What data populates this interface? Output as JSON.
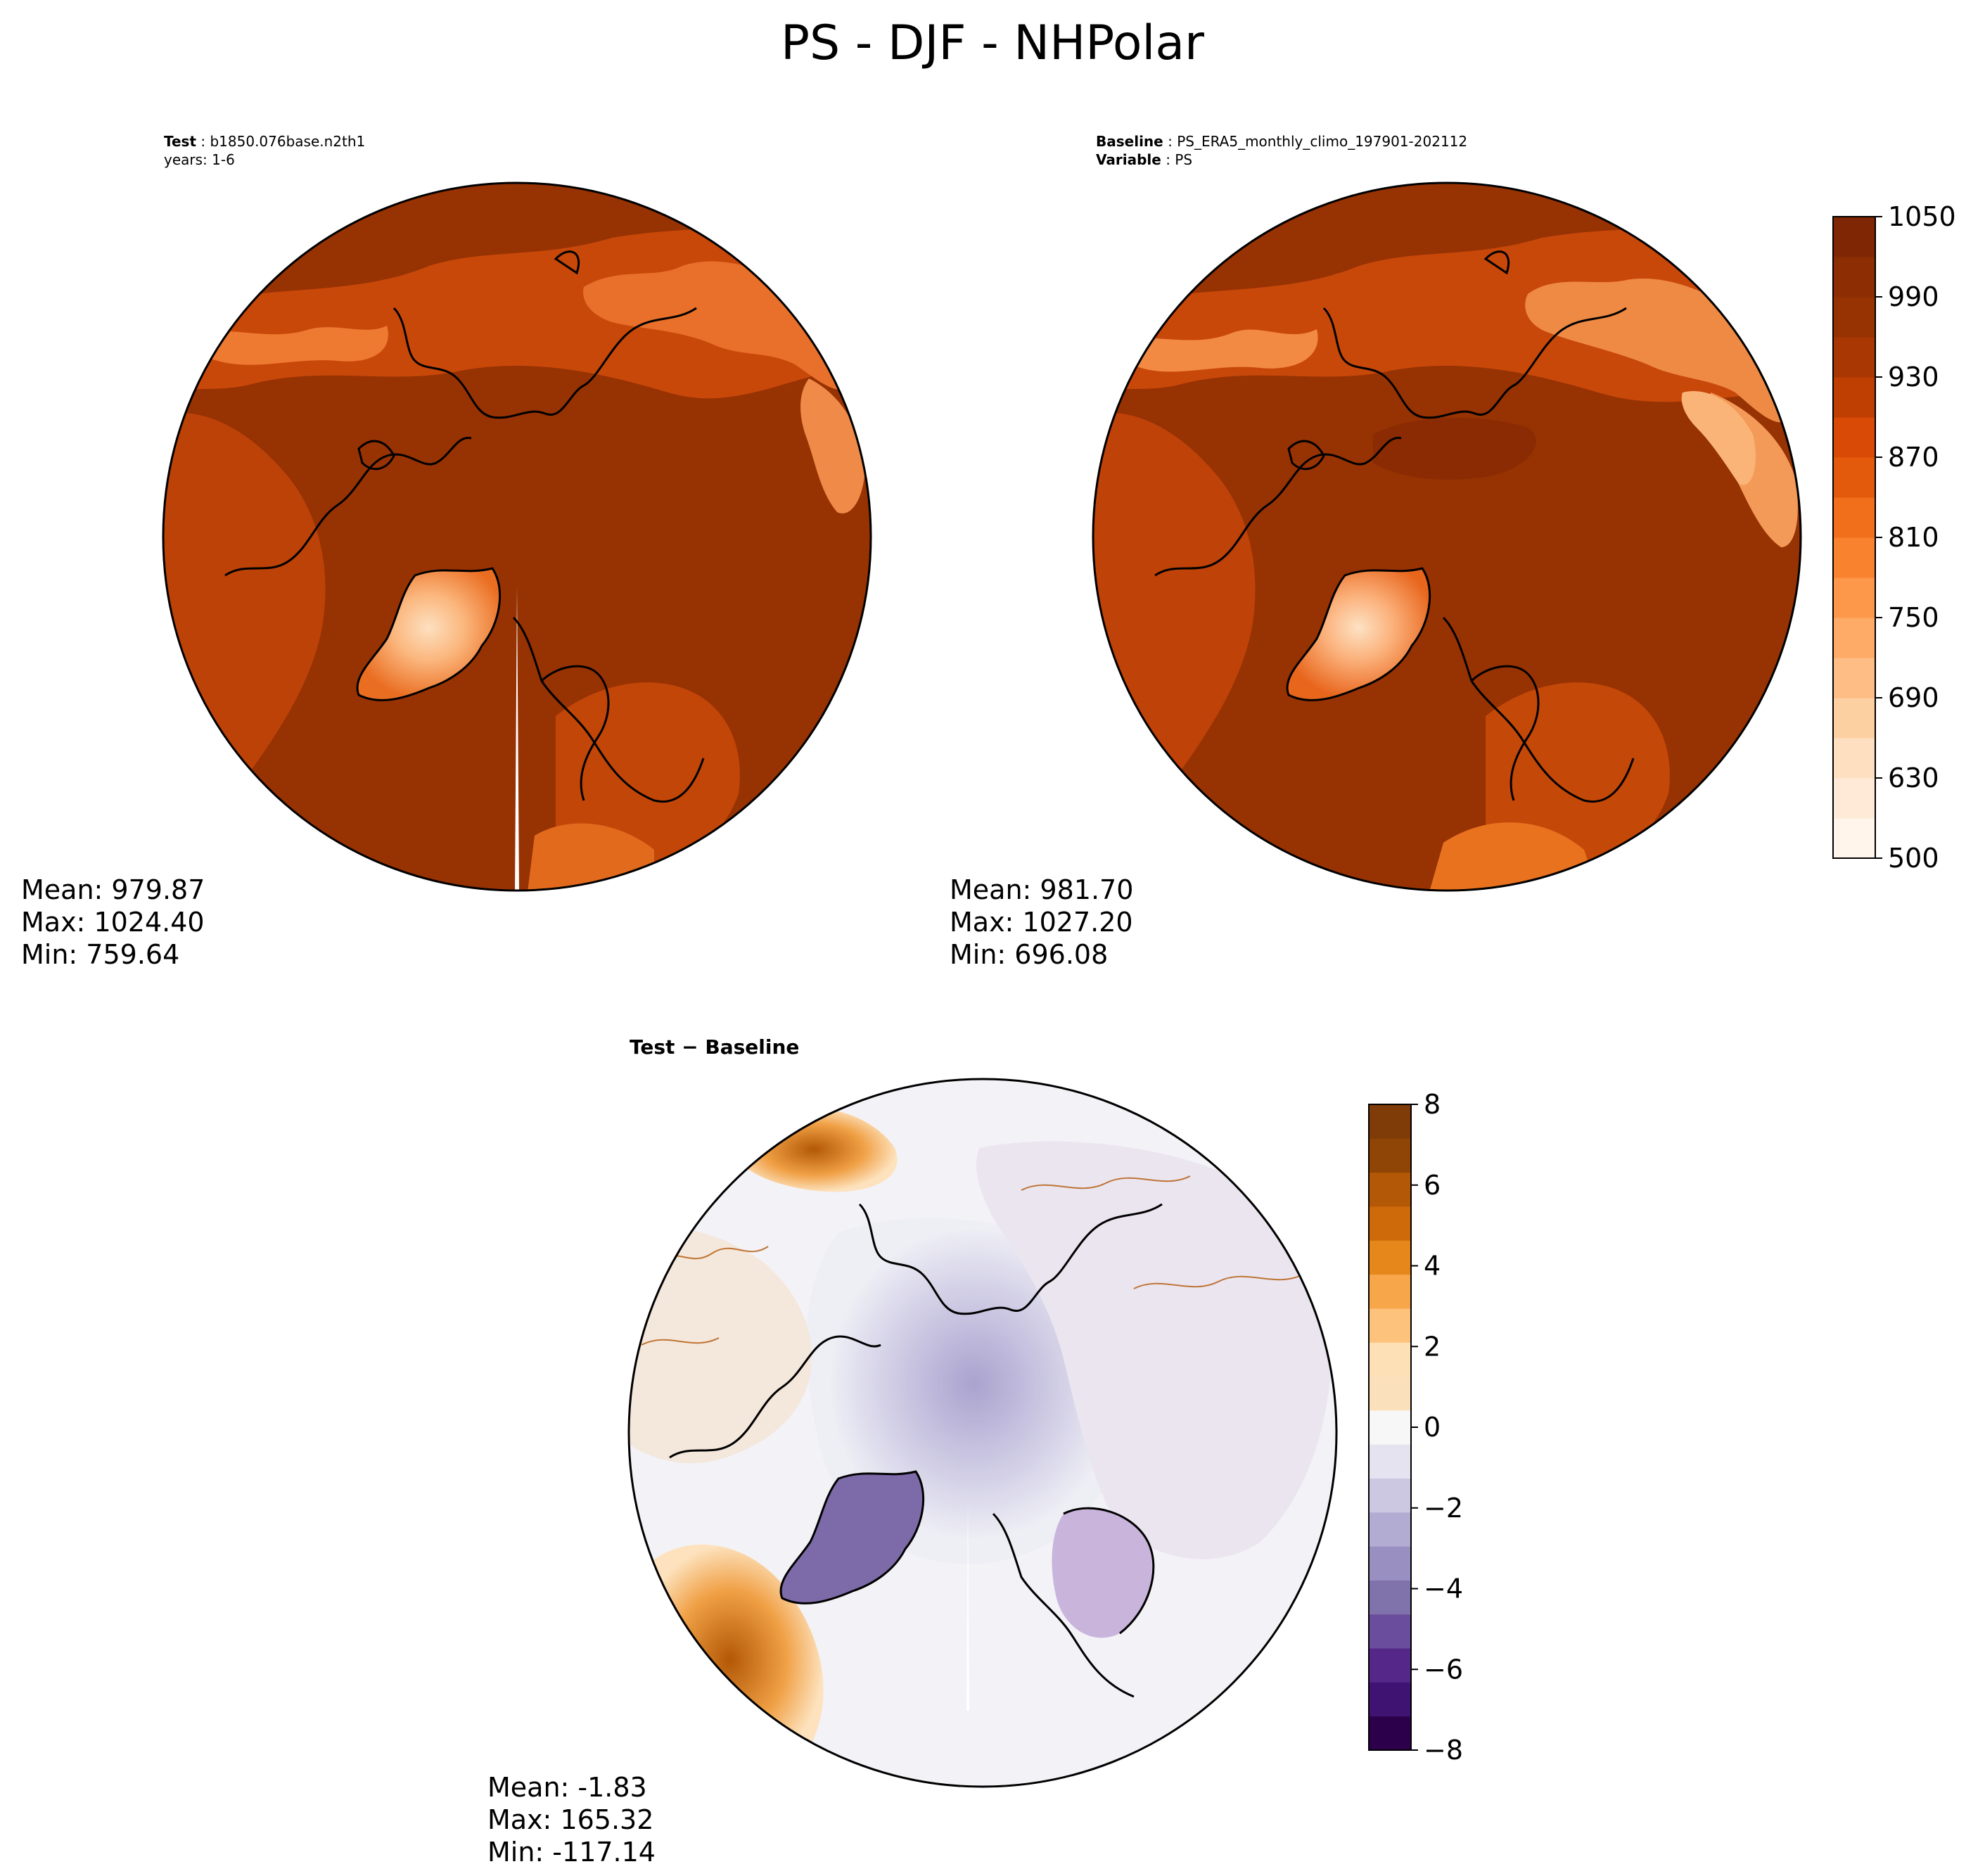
{
  "figure": {
    "title": "PS - DJF - NHPolar"
  },
  "panels": {
    "test": {
      "label_key": "Test",
      "label_value": "b1850.076base.n2th1",
      "years": "years: 1-6",
      "stats": {
        "mean": "Mean: 979.87",
        "max": "Max: 1024.40",
        "min": "Min: 759.64"
      }
    },
    "baseline": {
      "label_key": "Baseline",
      "label_value": "PS_ERA5_monthly_climo_197901-202112",
      "variable_key": "Variable",
      "variable_value": "PS",
      "stats": {
        "mean": "Mean: 981.70",
        "max": "Max: 1027.20",
        "min": "Min: 696.08"
      }
    },
    "difference": {
      "title": "Test − Baseline",
      "stats": {
        "mean": "Mean: -1.83",
        "max": "Max: 165.32",
        "min": "Min: -117.14"
      }
    }
  },
  "colorbars": {
    "main": {
      "ticks": [
        "1050",
        "990",
        "930",
        "870",
        "810",
        "750",
        "690",
        "630",
        "500"
      ],
      "colors": [
        "#fff5eb",
        "#feead6",
        "#fee0c1",
        "#fdd0a2",
        "#fdbd84",
        "#fdab67",
        "#fd974a",
        "#f8822e",
        "#f16e1b",
        "#e45a0d",
        "#d84a05",
        "#bf3e02",
        "#a83703",
        "#973203",
        "#8c2d04",
        "#7f2704"
      ]
    },
    "diff": {
      "ticks": [
        "8",
        "6",
        "4",
        "2",
        "0",
        "−2",
        "−4",
        "−6",
        "−8"
      ],
      "colors": [
        "#2d004b",
        "#3f1372",
        "#542788",
        "#6a4d9c",
        "#8073ac",
        "#998fc1",
        "#b2abd2",
        "#ccc8e2",
        "#e4e3ef",
        "#f7f7f7",
        "#fbe0bc",
        "#fee0b6",
        "#fdc27c",
        "#f7a64a",
        "#e6871c",
        "#cf6a0b",
        "#b35806",
        "#8f4505",
        "#7f3b08"
      ]
    }
  },
  "map_colors": {
    "ocean_high": "#973203",
    "land_mid": "#c8480a",
    "highland": "#f07a30",
    "greenland_light": "#fdc48c",
    "coast": "#000000"
  }
}
